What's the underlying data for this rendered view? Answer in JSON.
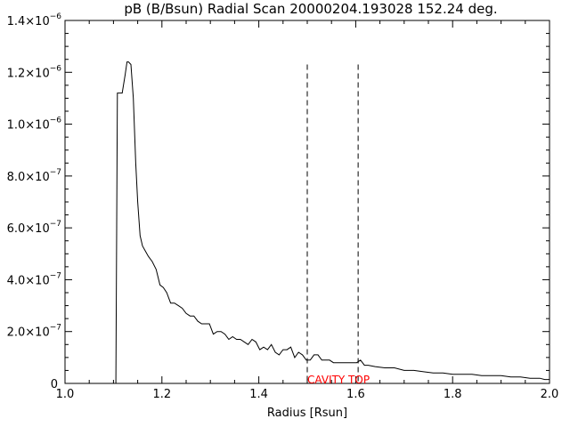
{
  "chart_data": {
    "type": "line",
    "title": "pB (B/Bsun) Radial Scan 20000204.193028 152.24 deg.",
    "xlabel": "Radius [Rsun]",
    "ylabel": "",
    "xlim": [
      1.0,
      2.0
    ],
    "ylim": [
      0,
      1.4e-06
    ],
    "x_ticks": [
      1.0,
      1.2,
      1.4,
      1.6,
      1.8,
      2.0
    ],
    "x_tick_labels": [
      "1.0",
      "1.2",
      "1.4",
      "1.6",
      "1.8",
      "2.0"
    ],
    "y_ticks": [
      {
        "value": 0,
        "mantissa": "0",
        "exponent": ""
      },
      {
        "value": 2e-07,
        "mantissa": "2.0×10",
        "exponent": "−7"
      },
      {
        "value": 4e-07,
        "mantissa": "4.0×10",
        "exponent": "−7"
      },
      {
        "value": 6e-07,
        "mantissa": "6.0×10",
        "exponent": "−7"
      },
      {
        "value": 8e-07,
        "mantissa": "8.0×10",
        "exponent": "−7"
      },
      {
        "value": 1e-06,
        "mantissa": "1.0×10",
        "exponent": "−6"
      },
      {
        "value": 1.2e-06,
        "mantissa": "1.2×10",
        "exponent": "−6"
      },
      {
        "value": 1.4e-06,
        "mantissa": "1.4×10",
        "exponent": "−6"
      }
    ],
    "grid": false,
    "series": [
      {
        "x": [
          1.1,
          1.105,
          1.108,
          1.112,
          1.118,
          1.124,
          1.128,
          1.131,
          1.136,
          1.141,
          1.146,
          1.15,
          1.155,
          1.16,
          1.166,
          1.172,
          1.18,
          1.188,
          1.196,
          1.203,
          1.21,
          1.218,
          1.226,
          1.234,
          1.242,
          1.25,
          1.258,
          1.266,
          1.274,
          1.282,
          1.29,
          1.298,
          1.306,
          1.314,
          1.322,
          1.33,
          1.338,
          1.346,
          1.354,
          1.362,
          1.37,
          1.378,
          1.386,
          1.394,
          1.402,
          1.41,
          1.418,
          1.426,
          1.434,
          1.442,
          1.45,
          1.458,
          1.466,
          1.474,
          1.482,
          1.49,
          1.498,
          1.506,
          1.514,
          1.522,
          1.53,
          1.538,
          1.546,
          1.554,
          1.562,
          1.57,
          1.578,
          1.586,
          1.594,
          1.602,
          1.61,
          1.618,
          1.626,
          1.64,
          1.66,
          1.68,
          1.7,
          1.72,
          1.74,
          1.76,
          1.78,
          1.8,
          1.82,
          1.84,
          1.86,
          1.88,
          1.9,
          1.92,
          1.94,
          1.96,
          1.98,
          1.99,
          2.0
        ],
        "y": [
          0.0,
          0.0,
          1.12e-06,
          1.12e-06,
          1.12e-06,
          1.19e-06,
          1.24e-06,
          1.24e-06,
          1.23e-06,
          1.1e-06,
          8.5e-07,
          7e-07,
          5.7e-07,
          5.3e-07,
          5.1e-07,
          4.9e-07,
          4.7e-07,
          4.4e-07,
          3.8e-07,
          3.7e-07,
          3.5e-07,
          3.1e-07,
          3.1e-07,
          3e-07,
          2.9e-07,
          2.7e-07,
          2.6e-07,
          2.6e-07,
          2.4e-07,
          2.3e-07,
          2.3e-07,
          2.3e-07,
          1.9e-07,
          2e-07,
          2e-07,
          1.9e-07,
          1.7e-07,
          1.8e-07,
          1.7e-07,
          1.7e-07,
          1.6e-07,
          1.5e-07,
          1.7e-07,
          1.6e-07,
          1.3e-07,
          1.4e-07,
          1.3e-07,
          1.5e-07,
          1.2e-07,
          1.1e-07,
          1.3e-07,
          1.3e-07,
          1.4e-07,
          1e-07,
          1.2e-07,
          1.1e-07,
          9e-08,
          9e-08,
          1.1e-07,
          1.1e-07,
          9e-08,
          9e-08,
          9e-08,
          8e-08,
          8e-08,
          8e-08,
          8e-08,
          8e-08,
          8e-08,
          8e-08,
          9e-08,
          7e-08,
          7e-08,
          6.5e-08,
          6e-08,
          6e-08,
          5e-08,
          5e-08,
          4.5e-08,
          4e-08,
          4e-08,
          3.5e-08,
          3.5e-08,
          3.5e-08,
          3e-08,
          3e-08,
          3e-08,
          2.5e-08,
          2.5e-08,
          2e-08,
          2e-08,
          1.5e-08,
          1.5e-08
        ]
      }
    ],
    "annotations": {
      "vlines": [
        {
          "x": 1.5,
          "y_top": 1.23e-06,
          "style": "dashed"
        },
        {
          "x": 1.605,
          "y_top": 1.23e-06,
          "style": "dashed"
        }
      ],
      "label": {
        "text": "CAVITY TOP",
        "x": 1.5,
        "color": "#ff0000"
      }
    }
  }
}
